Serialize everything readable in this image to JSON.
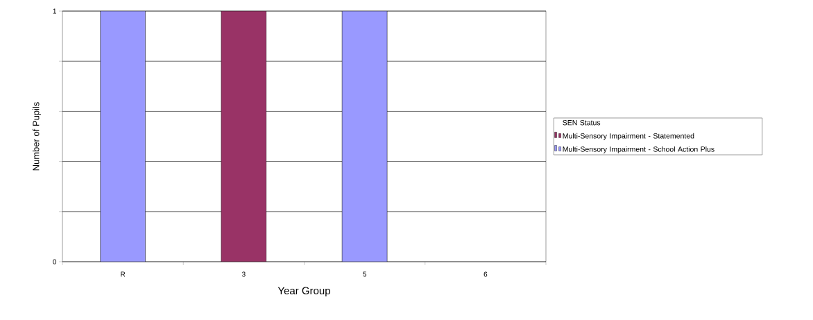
{
  "chart_data": {
    "type": "bar",
    "stacked": true,
    "xlabel": "Year Group",
    "ylabel": "Number of Pupils",
    "legend_title": "SEN Status",
    "categories": [
      "R",
      "3",
      "5",
      "6"
    ],
    "series": [
      {
        "name": "Multi-Sensory Impairment - Statemented",
        "color": "#993366",
        "values": [
          0,
          1,
          0,
          0
        ]
      },
      {
        "name": "Multi-Sensory Impairment - School Action Plus",
        "color": "#9999ff",
        "values": [
          1,
          0,
          1,
          0
        ]
      }
    ],
    "ylim": [
      0,
      1
    ],
    "yticks": [
      0,
      {
        "value": 0.2,
        "label": null
      },
      {
        "value": 0.4,
        "label": null
      },
      {
        "value": 0.6,
        "label": null
      },
      {
        "value": 0.8,
        "label": null
      },
      1
    ],
    "grid": "y",
    "legend": "right"
  }
}
